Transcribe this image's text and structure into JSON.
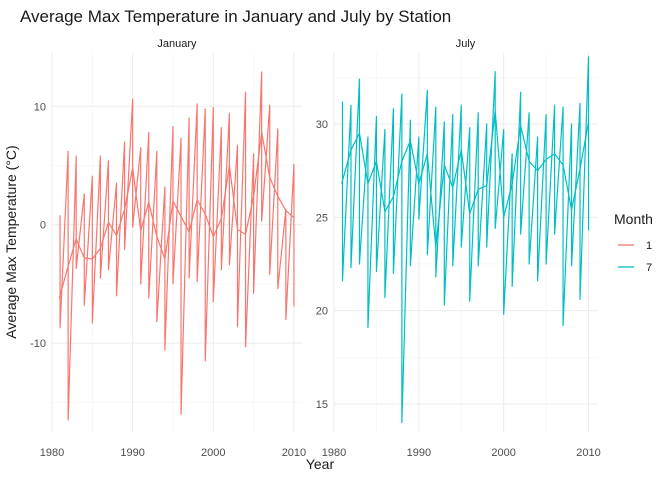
{
  "chart_data": {
    "type": "line",
    "title": "Average Max Temperature in January and July by Station",
    "xlabel": "Year",
    "ylabel": "Average Max Temperature (°C)",
    "legend": {
      "title": "Month",
      "placement": "right"
    },
    "grid": true,
    "facets": [
      {
        "strip": "January",
        "month": "1",
        "color": "#F8766D",
        "xlim": [
          1980,
          2011
        ],
        "ylim": [
          -17.5,
          14.5
        ],
        "xticks": [
          1980,
          1990,
          2000,
          2010
        ],
        "yticks": [
          -10,
          0,
          10
        ],
        "series": [
          {
            "name": "1",
            "x": [
              1981,
              1981,
              1982,
              1982,
              1983,
              1983,
              1984,
              1984,
              1985,
              1985,
              1986,
              1986,
              1987,
              1987,
              1988,
              1988,
              1989,
              1989,
              1990,
              1990,
              1991,
              1991,
              1992,
              1992,
              1993,
              1993,
              1994,
              1994,
              1995,
              1995,
              1996,
              1996,
              1997,
              1997,
              1998,
              1998,
              1999,
              1999,
              2000,
              2000,
              2001,
              2001,
              2002,
              2002,
              2003,
              2003,
              2004,
              2004,
              2005,
              2005,
              2006,
              2006,
              2007,
              2007,
              2008,
              2008,
              2009,
              2009,
              2010,
              2010
            ],
            "y": [
              0.8,
              -8.7,
              6.2,
              -16.5,
              5.8,
              -3.7,
              2.6,
              -6.8,
              4.1,
              -8.3,
              5.8,
              -4.5,
              5.4,
              -3.8,
              3.5,
              -6.0,
              7.0,
              -2.1,
              10.6,
              -0.2,
              6.5,
              -5.0,
              7.8,
              -6.2,
              6.2,
              -8.2,
              3.2,
              -10.6,
              8.3,
              -5.0,
              7.3,
              -16.0,
              9.0,
              -4.5,
              10.2,
              -4.8,
              9.8,
              -11.5,
              9.9,
              -6.5,
              8.2,
              -3.8,
              9.4,
              -3.4,
              6.7,
              -8.6,
              11.2,
              -10.3,
              6.0,
              -5.8,
              12.9,
              0.3,
              10.1,
              -4.2,
              8.1,
              -5.4,
              1.3,
              -8.0,
              5.1,
              -6.9
            ]
          },
          {
            "name": "1",
            "x": [
              1980.9,
              1982,
              1983,
              1984,
              1985,
              1986,
              1987,
              1988,
              1989,
              1990,
              1991,
              1992,
              1993,
              1994,
              1995,
              1996,
              1997,
              1998,
              1999,
              2000,
              2001,
              2002,
              2003,
              2004,
              2005,
              2006,
              2007,
              2008,
              2009,
              2010
            ],
            "y": [
              -6.2,
              -3.5,
              -1.2,
              -2.8,
              -2.9,
              -2.0,
              0.2,
              -0.9,
              1.3,
              4.8,
              -0.5,
              1.9,
              -1.0,
              -2.9,
              2.0,
              0.7,
              -0.6,
              2.1,
              0.9,
              -1.0,
              0.5,
              5.0,
              -0.4,
              -0.8,
              2.4,
              7.8,
              4.0,
              2.4,
              1.2,
              0.6
            ]
          }
        ]
      },
      {
        "strip": "July",
        "month": "7",
        "color": "#00BFC4",
        "xlim": [
          1980,
          2011
        ],
        "ylim": [
          13.5,
          33.8
        ],
        "xticks": [
          1980,
          1990,
          2000,
          2010
        ],
        "yticks": [
          15,
          20,
          25,
          30
        ],
        "series": [
          {
            "name": "7",
            "x": [
              1981,
              1981,
              1982,
              1982,
              1983,
              1983,
              1984,
              1984,
              1985,
              1985,
              1986,
              1986,
              1987,
              1987,
              1988,
              1988,
              1989,
              1989,
              1990,
              1990,
              1991,
              1991,
              1992,
              1992,
              1993,
              1993,
              1994,
              1994,
              1995,
              1995,
              1996,
              1996,
              1997,
              1997,
              1998,
              1998,
              1999,
              1999,
              2000,
              2000,
              2001,
              2001,
              2002,
              2002,
              2003,
              2003,
              2004,
              2004,
              2005,
              2005,
              2006,
              2006,
              2007,
              2007,
              2008,
              2008,
              2009,
              2009,
              2010,
              2010
            ],
            "y": [
              31.2,
              21.6,
              31.0,
              22.3,
              32.4,
              22.5,
              29.3,
              19.1,
              30.4,
              22.1,
              29.7,
              20.7,
              30.8,
              22.0,
              31.6,
              14.0,
              30.2,
              22.4,
              29.3,
              24.9,
              31.8,
              23.0,
              30.9,
              21.8,
              30.1,
              20.3,
              30.5,
              22.4,
              31.0,
              23.4,
              29.8,
              20.5,
              30.6,
              22.4,
              30.0,
              23.4,
              32.8,
              24.4,
              29.7,
              19.8,
              28.4,
              21.3,
              31.7,
              24.1,
              30.6,
              22.5,
              29.3,
              21.6,
              30.5,
              22.5,
              31.0,
              24.1,
              30.9,
              19.2,
              30.0,
              22.4,
              31.1,
              20.6,
              33.6,
              24.3
            ]
          },
          {
            "name": "7",
            "x": [
              1980.9,
              1982,
              1983,
              1984,
              1985,
              1986,
              1987,
              1988,
              1989,
              1990,
              1991,
              1992,
              1993,
              1994,
              1995,
              1996,
              1997,
              1998,
              1999,
              2000,
              2001,
              2002,
              2003,
              2004,
              2005,
              2006,
              2007,
              2008,
              2009,
              2010
            ],
            "y": [
              26.8,
              28.6,
              29.5,
              26.8,
              28.0,
              25.3,
              26.1,
              28.0,
              29.1,
              26.8,
              28.4,
              23.4,
              27.8,
              26.6,
              28.6,
              25.2,
              26.5,
              26.7,
              30.7,
              25.0,
              26.8,
              29.9,
              28.0,
              27.5,
              28.1,
              28.4,
              27.8,
              25.4,
              27.6,
              30.1
            ]
          }
        ]
      }
    ]
  }
}
